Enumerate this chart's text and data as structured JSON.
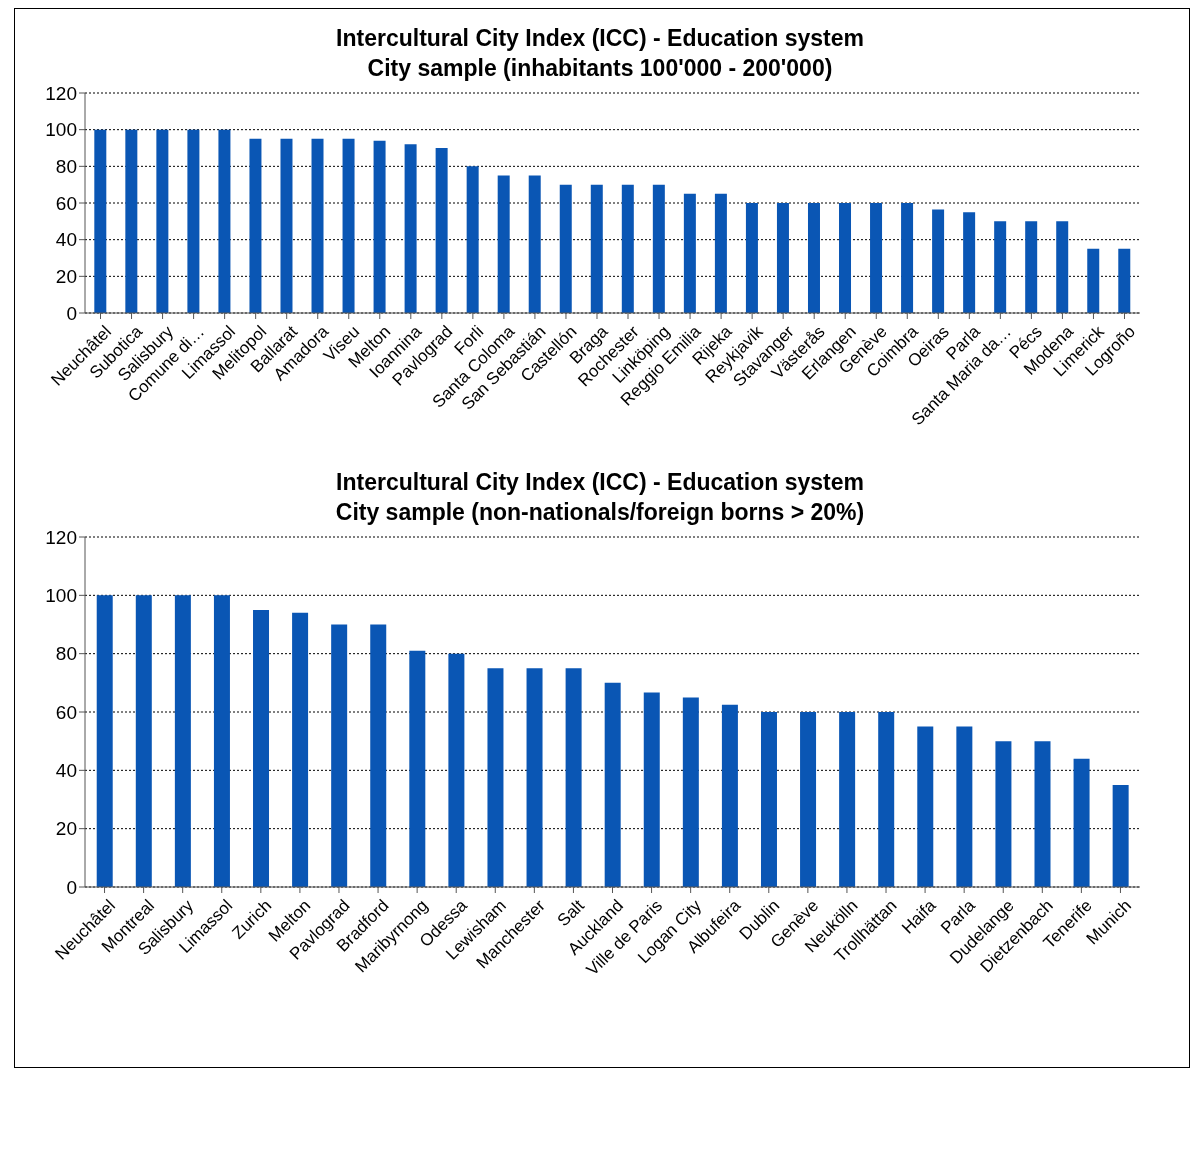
{
  "chart_data": [
    {
      "type": "bar",
      "title": "Intercultural City Index (ICC) - Education system",
      "subtitle": "City sample (inhabitants 100'000 - 200'000)",
      "categories": [
        "Neuchâtel",
        "Subotica",
        "Salisbury",
        "Comune di…",
        "Limassol",
        "Melitopol",
        "Ballarat",
        "Amadora",
        "Viseu",
        "Melton",
        "Ioannina",
        "Pavlograd",
        "Forli",
        "Santa Coloma",
        "San Sebastián",
        "Castellón",
        "Braga",
        "Rochester",
        "Linköping",
        "Reggio Emilia",
        "Rijeka",
        "Reykjavik",
        "Stavanger",
        "Västerås",
        "Erlangen",
        "Genève",
        "Coimbra",
        "Oeiras",
        "Parla",
        "Santa Maria da…",
        "Pécs",
        "Modena",
        "Limerick",
        "Logroño"
      ],
      "values": [
        100,
        100,
        100,
        100,
        100,
        95,
        95,
        95,
        95,
        94,
        92,
        90,
        80,
        75,
        75,
        70,
        70,
        70,
        70,
        65,
        65,
        60,
        60,
        60,
        60,
        60,
        60,
        56.5,
        55,
        50,
        50,
        50,
        35,
        35
      ],
      "color": "#0a56b4",
      "ylim": [
        0,
        120
      ],
      "yticks": [
        0,
        20,
        40,
        60,
        80,
        100,
        120
      ],
      "grid": "y",
      "legend": false
    },
    {
      "type": "bar",
      "title": "Intercultural City Index (ICC) - Education system",
      "subtitle": "City sample (non-nationals/foreign borns > 20%)",
      "categories": [
        "Neuchâtel",
        "Montreal",
        "Salisbury",
        "Limassol",
        "Zurich",
        "Melton",
        "Pavlograd",
        "Bradford",
        "Maribyrnong",
        "Odessa",
        "Lewisham",
        "Manchester",
        "Salt",
        "Auckland",
        "Ville de Paris",
        "Logan City",
        "Albufeira",
        "Dublin",
        "Genève",
        "Neukölln",
        "Trollhättan",
        "Haifa",
        "Parla",
        "Dudelange",
        "Dietzenbach",
        "Tenerife",
        "Munich"
      ],
      "values": [
        100,
        100,
        100,
        100,
        95,
        94,
        90,
        90,
        81,
        80,
        75,
        75,
        75,
        70,
        66.7,
        65,
        62.5,
        60,
        60,
        60,
        60,
        55,
        55,
        50,
        50,
        44,
        35
      ],
      "color": "#0a56b4",
      "ylim": [
        0,
        120
      ],
      "yticks": [
        0,
        20,
        40,
        60,
        80,
        100,
        120
      ],
      "grid": "y",
      "legend": false
    }
  ]
}
